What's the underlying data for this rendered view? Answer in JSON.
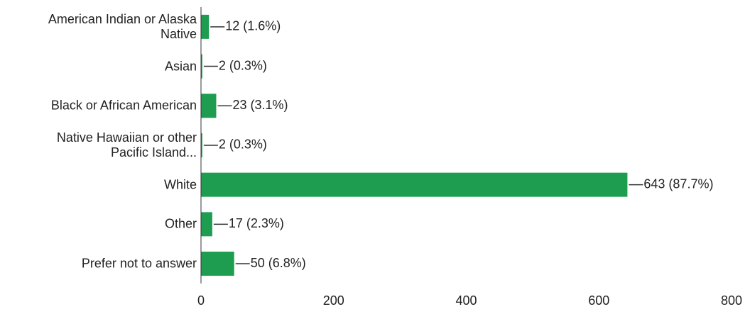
{
  "chart_data": {
    "type": "bar",
    "orientation": "horizontal",
    "categories": [
      "American Indian or Alaska\nNative",
      "Asian",
      "Black or African American",
      "Native Hawaiian or other\nPacific Island...",
      "White",
      "Other",
      "Prefer not to answer"
    ],
    "values": [
      12,
      2,
      23,
      2,
      643,
      17,
      50
    ],
    "value_labels": [
      "12 (1.6%)",
      "2 (0.3%)",
      "23 (3.1%)",
      "2 (0.3%)",
      "643 (87.7%)",
      "17 (2.3%)",
      "50 (6.8%)"
    ],
    "color": "#1e9c50",
    "xlim": [
      0,
      800
    ],
    "xticks": [
      0,
      200,
      400,
      600,
      800
    ]
  }
}
